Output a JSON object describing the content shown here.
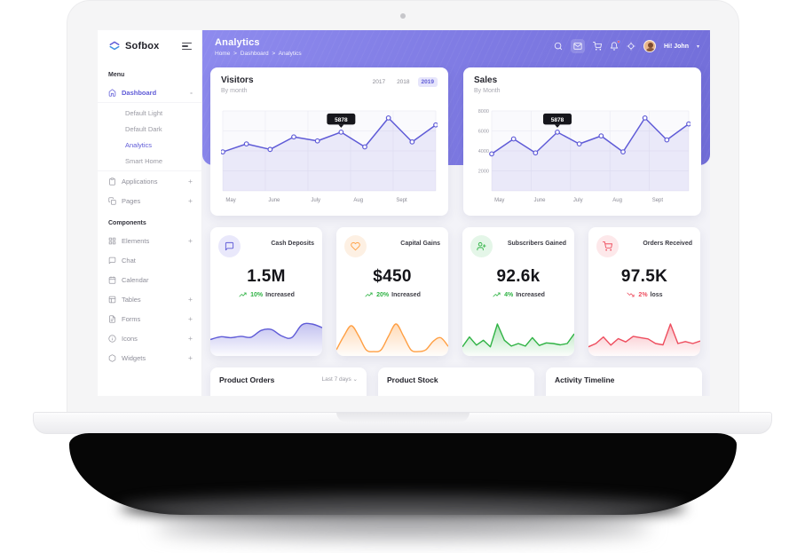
{
  "brand": {
    "name": "Sofbox"
  },
  "header": {
    "title": "Analytics",
    "breadcrumb": [
      "Home",
      "Dashboard",
      "Analytics"
    ],
    "separator": ">",
    "greeting": "Hi! John",
    "icon_names": [
      "search-icon",
      "mail-icon",
      "cart-icon",
      "bell-icon",
      "locate-icon"
    ]
  },
  "sidebar": {
    "sections": [
      {
        "label": "Menu",
        "items": [
          {
            "label": "Dashboard",
            "icon": "home-icon",
            "expand": "-",
            "children": [
              "Default Light",
              "Default Dark",
              "Analytics",
              "Smart Home"
            ],
            "active_child": "Analytics"
          },
          {
            "label": "Applications",
            "icon": "clipboard-icon",
            "expand": "+"
          },
          {
            "label": "Pages",
            "icon": "pages-icon",
            "expand": "+"
          }
        ]
      },
      {
        "label": "Components",
        "items": [
          {
            "label": "Elements",
            "icon": "grid-icon",
            "expand": "+"
          },
          {
            "label": "Chat",
            "icon": "chat-icon",
            "expand": ""
          },
          {
            "label": "Calendar",
            "icon": "calendar-icon",
            "expand": ""
          },
          {
            "label": "Tables",
            "icon": "table-icon",
            "expand": "+"
          },
          {
            "label": "Forms",
            "icon": "forms-icon",
            "expand": "+"
          },
          {
            "label": "Icons",
            "icon": "icons-icon",
            "expand": "+"
          },
          {
            "label": "Widgets",
            "icon": "widgets-icon",
            "expand": "+"
          }
        ]
      }
    ]
  },
  "stats": [
    {
      "title": "Cash Deposits",
      "value": "1.5M",
      "trend_value": "10%",
      "trend_label": "Increased",
      "direction": "up",
      "color": "#5f5bd7"
    },
    {
      "title": "Capital Gains",
      "value": "$450",
      "trend_value": "20%",
      "trend_label": "Increased",
      "direction": "up",
      "color": "#ff9f43"
    },
    {
      "title": "Subscribers Gained",
      "value": "92.6k",
      "trend_value": "4%",
      "trend_label": "Increased",
      "direction": "up",
      "color": "#2fb344"
    },
    {
      "title": "Orders Received",
      "value": "97.5K",
      "trend_value": "2%",
      "trend_label": "loss",
      "direction": "down",
      "color": "#ee4d5e"
    }
  ],
  "bottom_cards": [
    {
      "title": "Product Orders",
      "filter": "Last 7 days"
    },
    {
      "title": "Product Stock"
    },
    {
      "title": "Activity Timeline"
    }
  ],
  "colors": {
    "primary": "#5f5bd7",
    "header_purple": "#7d79e2",
    "green": "#2fb344",
    "orange": "#ff9f43",
    "red": "#ee4d5e",
    "tooltip_bg": "#16161c",
    "trend_up": "#2fb344",
    "trend_down": "#ee4d5e"
  },
  "chart_data": [
    {
      "type": "line",
      "title": "Visitors",
      "subtitle": "By month",
      "x": [
        "May",
        "June",
        "July",
        "Aug",
        "Sept"
      ],
      "series": [
        {
          "name": "Visitors",
          "values": [
            3900,
            4700,
            4150,
            5400,
            5000,
            5878,
            4400,
            7300,
            4900,
            6600
          ]
        }
      ],
      "ylim": [
        0,
        8000
      ],
      "grid": true,
      "tooltip": {
        "index": 5,
        "label": "5878"
      },
      "year_filters": [
        "2017",
        "2018",
        "2019"
      ],
      "selected_year": "2019",
      "legend": "none"
    },
    {
      "type": "line",
      "title": "Sales",
      "subtitle": "By Month",
      "x": [
        "May",
        "June",
        "July",
        "Aug",
        "Sept"
      ],
      "yticks": [
        2000,
        4000,
        6000,
        8000
      ],
      "series": [
        {
          "name": "Sales",
          "values": [
            3700,
            5200,
            3800,
            5878,
            4700,
            5500,
            3900,
            7300,
            5100,
            6700
          ]
        }
      ],
      "ylim": [
        0,
        8000
      ],
      "grid": true,
      "tooltip": {
        "index": 3,
        "label": "5878"
      },
      "legend": "none"
    },
    {
      "type": "area",
      "name": "cash-deposits-sparkline",
      "smooth": true,
      "color": "#5f5bd7",
      "values": [
        3,
        3.6,
        3.4,
        3.7,
        3.5,
        5,
        5.2,
        3.8,
        3.4,
        6.2,
        6.4,
        5.6
      ]
    },
    {
      "type": "area",
      "name": "capital-gains-sparkline",
      "smooth": true,
      "color": "#ff9f43",
      "values": [
        1,
        5,
        8,
        5,
        1,
        0.5,
        1,
        5,
        8.5,
        5,
        1,
        0.5,
        1,
        3.5,
        4.5,
        2
      ]
    },
    {
      "type": "area",
      "name": "subscribers-gained-sparkline",
      "smooth": false,
      "color": "#2fb344",
      "values": [
        2,
        5,
        2.5,
        4,
        2,
        9,
        4,
        2.2,
        3,
        2.2,
        4.8,
        2.4,
        3.2,
        3,
        2.6,
        3,
        6
      ]
    },
    {
      "type": "area",
      "name": "orders-received-sparkline",
      "smooth": false,
      "color": "#ee4d5e",
      "values": [
        2,
        3,
        5,
        2.5,
        4.5,
        3.5,
        5.2,
        4.8,
        4.4,
        3,
        2.6,
        9,
        3,
        3.6,
        3,
        3.8
      ]
    }
  ]
}
